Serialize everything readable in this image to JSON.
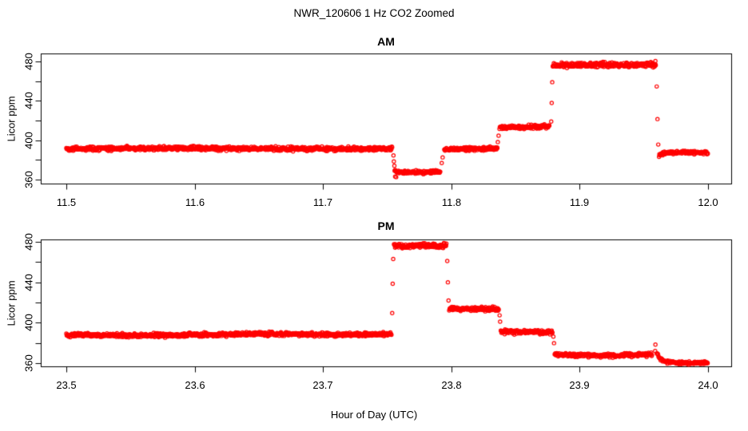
{
  "figure": {
    "title": "NWR_120606  1 Hz CO2 Zoomed",
    "xlabel": "Hour of Day (UTC)",
    "background_color": "#ffffff",
    "text_color": "#000000",
    "point_color": "#ff0000",
    "marker": "open-circle"
  },
  "chart_data": [
    {
      "type": "scatter",
      "title": "AM",
      "ylabel": "Licor ppm",
      "xlim": [
        11.5,
        12.0
      ],
      "ylim": [
        360,
        480
      ],
      "grid": false,
      "sample_rate_hz": 1,
      "xticks": [
        [
          11.5,
          "11.5"
        ],
        [
          11.6,
          "11.6"
        ],
        [
          11.7,
          "11.7"
        ],
        [
          11.8,
          "11.8"
        ],
        [
          11.9,
          "11.9"
        ],
        [
          12.0,
          "12.0"
        ]
      ],
      "yticks": [
        [
          360,
          "360"
        ],
        [
          380,
          ""
        ],
        [
          400,
          "400"
        ],
        [
          420,
          ""
        ],
        [
          440,
          "440"
        ],
        [
          460,
          ""
        ],
        [
          480,
          "480"
        ]
      ],
      "segments": [
        {
          "pts": [
            [
              11.5,
              391.3
            ],
            [
              11.6,
              391.8
            ],
            [
              11.7,
              391.2
            ],
            [
              11.754,
              391.4
            ]
          ],
          "sigma": 1.0
        },
        {
          "pts": [
            [
              11.7558,
              368.8
            ],
            [
              11.759,
              367.2
            ],
            [
              11.78,
              367.5
            ],
            [
              11.7915,
              367.9
            ]
          ],
          "sigma": 0.9
        },
        {
          "pts": [
            [
              11.7945,
              390.6
            ],
            [
              11.82,
              391.4
            ],
            [
              11.836,
              391.3
            ]
          ],
          "sigma": 0.9
        },
        {
          "pts": [
            [
              11.8375,
              412.8
            ],
            [
              11.86,
              413.6
            ],
            [
              11.8765,
              413.9
            ]
          ],
          "sigma": 1.0
        },
        {
          "pts": [
            [
              11.879,
              476.0
            ],
            [
              11.92,
              476.7
            ],
            [
              11.9595,
              476.4
            ]
          ],
          "sigma": 1.2
        },
        {
          "pts": [
            [
              11.9618,
              383.0
            ],
            [
              11.9628,
              385.5
            ],
            [
              11.966,
              387.3
            ],
            [
              11.98,
              387.6
            ],
            [
              12.0,
              387.2
            ]
          ],
          "sigma": 0.8
        }
      ],
      "transition_points": [
        [
          11.7549,
          384.5
        ],
        [
          11.7552,
          378.5
        ],
        [
          11.7556,
          374.0
        ],
        [
          11.7562,
          363.0
        ],
        [
          11.757,
          362.5
        ],
        [
          11.7925,
          376.8
        ],
        [
          11.7932,
          382.6
        ],
        [
          11.8362,
          398.2
        ],
        [
          11.8368,
          404.6
        ],
        [
          11.8778,
          419.0
        ],
        [
          11.8782,
          437.8
        ],
        [
          11.8786,
          459.0
        ],
        [
          11.959,
          480.5
        ],
        [
          11.96,
          454.6
        ],
        [
          11.9606,
          421.5
        ],
        [
          11.9612,
          395.6
        ]
      ]
    },
    {
      "type": "scatter",
      "title": "PM",
      "ylabel": "Licor ppm",
      "xlim": [
        23.5,
        24.0
      ],
      "ylim": [
        360,
        480
      ],
      "grid": false,
      "sample_rate_hz": 1,
      "xticks": [
        [
          23.5,
          "23.5"
        ],
        [
          23.6,
          "23.6"
        ],
        [
          23.7,
          "23.7"
        ],
        [
          23.8,
          "23.8"
        ],
        [
          23.9,
          "23.9"
        ],
        [
          24.0,
          "24.0"
        ]
      ],
      "yticks": [
        [
          360,
          "360"
        ],
        [
          380,
          ""
        ],
        [
          400,
          "400"
        ],
        [
          420,
          ""
        ],
        [
          440,
          "440"
        ],
        [
          460,
          ""
        ],
        [
          480,
          "480"
        ]
      ],
      "segments": [
        {
          "pts": [
            [
              23.5,
              388.0
            ],
            [
              23.56,
              387.5
            ],
            [
              23.615,
              388.2
            ],
            [
              23.645,
              389.2
            ],
            [
              23.67,
              388.8
            ],
            [
              23.7,
              388.3
            ],
            [
              23.7535,
              388.4
            ]
          ],
          "sigma": 0.95
        },
        {
          "pts": [
            [
              23.7553,
              475.8
            ],
            [
              23.77,
              476.4
            ],
            [
              23.7962,
              476.2
            ]
          ],
          "sigma": 1.2
        },
        {
          "pts": [
            [
              23.7983,
              413.9
            ],
            [
              23.82,
              413.6
            ],
            [
              23.837,
              413.3
            ]
          ],
          "sigma": 1.0
        },
        {
          "pts": [
            [
              23.8385,
              391.2
            ],
            [
              23.86,
              390.8
            ],
            [
              23.879,
              390.4
            ]
          ],
          "sigma": 0.95
        },
        {
          "pts": [
            [
              23.8805,
              368.6
            ],
            [
              23.9,
              368.0
            ],
            [
              23.925,
              367.4
            ],
            [
              23.945,
              368.2
            ],
            [
              23.9565,
              368.6
            ]
          ],
          "sigma": 0.9
        },
        {
          "pts": [
            [
              23.96,
              370.5
            ],
            [
              23.9615,
              366.5
            ],
            [
              23.9635,
              363.5
            ],
            [
              23.967,
              361.6
            ],
            [
              23.972,
              360.7
            ],
            [
              23.98,
              360.3
            ],
            [
              24.0,
              360.4
            ]
          ],
          "sigma": 0.7
        }
      ],
      "transition_points": [
        [
          23.7539,
          409.5
        ],
        [
          23.7543,
          438.5
        ],
        [
          23.7547,
          463.0
        ],
        [
          23.7968,
          461.0
        ],
        [
          23.7973,
          440.0
        ],
        [
          23.7978,
          422.0
        ],
        [
          23.8376,
          407.3
        ],
        [
          23.838,
          401.0
        ],
        [
          23.8795,
          386.2
        ],
        [
          23.88,
          379.8
        ],
        [
          23.9588,
          372.0
        ],
        [
          23.959,
          378.3
        ]
      ]
    }
  ]
}
